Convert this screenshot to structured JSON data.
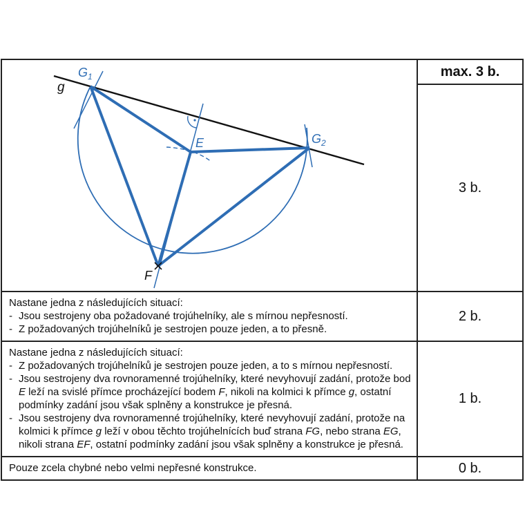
{
  "header": {
    "max_label": "max. 3 b."
  },
  "figure": {
    "labels": {
      "g": "g",
      "G1": "G",
      "G1_sub": "1",
      "G2": "G",
      "G2_sub": "2",
      "E": "E",
      "F": "F"
    },
    "colors": {
      "construction": "#2e6db4",
      "line": "#111111"
    }
  },
  "rows": [
    {
      "points": "3 b."
    },
    {
      "intro": "Nastane jedna z následujících situací:",
      "items": [
        "Jsou sestrojeny oba požadované trojúhelníky, ale s mírnou nepřesností.",
        "Z požadovaných trojúhelníků je sestrojen pouze jeden, a to přesně."
      ],
      "points": "2 b."
    },
    {
      "intro": "Nastane jedna z následujících situací:",
      "item1": "Z požadovaných trojúhelníků je sestrojen pouze jeden, a to s mírnou nepřesností.",
      "item2": {
        "t1": "Jsou sestrojeny dva rovnoramenné trojúhelníky, které nevyhovují zadání, protože bod ",
        "E": "E",
        "t2": " leží na svislé přímce procházející bodem ",
        "F": "F",
        "t3": ", nikoli na kolmici k přímce ",
        "g": "g",
        "t4": ", ostatní podmínky zadání jsou však splněny a konstrukce je přesná."
      },
      "item3": {
        "t1": "Jsou sestrojeny dva rovnoramenné trojúhelníky, které nevyhovují zadání, protože na kolmici k přímce ",
        "g": "g",
        "t2": " leží v obou těchto trojúhelnících buď strana ",
        "FG": "FG",
        "t3": ", nebo strana ",
        "EG": "EG",
        "t4": ", nikoli strana ",
        "EF": "EF",
        "t5": ", ostatní podmínky zadání jsou však splněny a konstrukce je přesná."
      },
      "points": "1 b."
    },
    {
      "text": "Pouze zcela chybné nebo velmi nepřesné konstrukce.",
      "points": "0 b."
    }
  ]
}
